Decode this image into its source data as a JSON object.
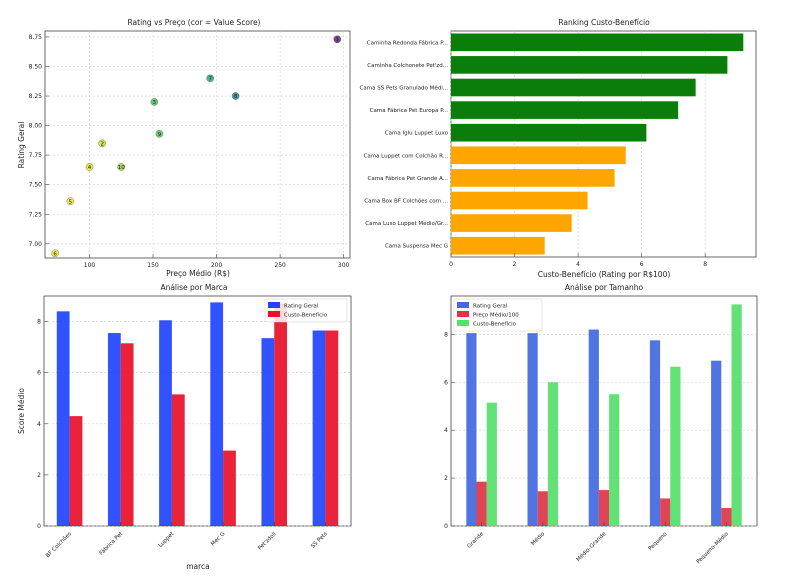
{
  "chart_data": [
    {
      "id": "scatter",
      "type": "scatter",
      "title": "Rating vs Preço (cor = Value Score)",
      "xlabel": "Preço Médio (R$)",
      "ylabel": "Rating Geral",
      "xlim": [
        65,
        305
      ],
      "ylim": [
        6.88,
        8.8
      ],
      "xticks": [
        100,
        150,
        200,
        250,
        300
      ],
      "yticks": [
        7.0,
        7.25,
        7.5,
        7.75,
        8.0,
        8.25,
        8.5,
        8.75
      ],
      "points": [
        {
          "label": "1",
          "x": 295,
          "y": 8.73,
          "color": "#6a2f7f"
        },
        {
          "label": "2",
          "x": 110,
          "y": 7.85,
          "color": "#c8df3c"
        },
        {
          "label": "3",
          "x": 151,
          "y": 8.2,
          "color": "#56c66a"
        },
        {
          "label": "4",
          "x": 100,
          "y": 7.65,
          "color": "#dce63a"
        },
        {
          "label": "5",
          "x": 85,
          "y": 7.36,
          "color": "#eae63a"
        },
        {
          "label": "6",
          "x": 73,
          "y": 6.92,
          "color": "#f2e63a"
        },
        {
          "label": "7",
          "x": 195,
          "y": 8.4,
          "color": "#3aaa8e"
        },
        {
          "label": "8",
          "x": 215,
          "y": 8.25,
          "color": "#3a8e9a"
        },
        {
          "label": "9",
          "x": 155,
          "y": 7.93,
          "color": "#5dca6a"
        },
        {
          "label": "10",
          "x": 125,
          "y": 7.65,
          "color": "#9ed84a"
        }
      ]
    },
    {
      "id": "ranking",
      "type": "bar",
      "orientation": "horizontal",
      "title": "Ranking Custo-Benefício",
      "xlabel": "Custo-Benefício (Rating por R$100)",
      "xlim": [
        0,
        9.6
      ],
      "xticks": [
        0,
        2,
        4,
        6,
        8
      ],
      "categories": [
        "Caminha Redonda Fábrica P...",
        "Caminha Colchonete Pet'zd...",
        "Cama SS Pets Granulado Médi...",
        "Cama Fábrica Pet Europa P...",
        "Cama Iglu Luppet Luxo",
        "Cama Luppet com Colchão R...",
        "Cama Fábrica Pet Grande A...",
        "Cama Box BF Colchões com ...",
        "Cama Luxo Luppet Médio/Gr...",
        "Cama Suspensa Mec G"
      ],
      "values": [
        9.2,
        8.7,
        7.7,
        7.15,
        6.15,
        5.5,
        5.15,
        4.3,
        3.8,
        2.95
      ],
      "colors": [
        "#0a7d0a",
        "#0a7d0a",
        "#0a7d0a",
        "#0a7d0a",
        "#0a7d0a",
        "#ffa500",
        "#ffa500",
        "#ffa500",
        "#ffa500",
        "#ffa500"
      ]
    },
    {
      "id": "marca",
      "type": "bar",
      "title": "Análise por Marca",
      "xlabel": "marca",
      "ylabel": "Score Médio",
      "ylim": [
        0,
        9.0
      ],
      "yticks": [
        0,
        2,
        4,
        6,
        8
      ],
      "categories": [
        "BF Colchões",
        "Fábrica Pet",
        "Luppet",
        "Mec G",
        "Pet'zdoll",
        "SS Pets"
      ],
      "series": [
        {
          "name": "Rating Geral",
          "color": "#1f44ff",
          "values": [
            8.4,
            7.55,
            8.05,
            8.75,
            7.35,
            7.65
          ]
        },
        {
          "name": "Custo-Benefício",
          "color": "#e8102a",
          "values": [
            4.3,
            7.15,
            5.15,
            2.95,
            8.7,
            7.65
          ]
        }
      ],
      "legend": "top-right"
    },
    {
      "id": "tamanho",
      "type": "bar",
      "title": "Análise por Tamanho",
      "ylim": [
        0,
        9.6
      ],
      "yticks": [
        0,
        2,
        4,
        6,
        8
      ],
      "categories": [
        "Grande",
        "Médio",
        "Médio-Grande",
        "Pequeno",
        "Pequeno-Médio"
      ],
      "series": [
        {
          "name": "Rating Geral",
          "color": "#4169e1",
          "values": [
            8.05,
            8.05,
            8.2,
            7.75,
            6.9
          ]
        },
        {
          "name": "Preço Médio/100",
          "color": "#dc3545",
          "values": [
            1.85,
            1.45,
            1.5,
            1.15,
            0.75
          ]
        },
        {
          "name": "Custo-Benefício",
          "color": "#55e06a",
          "values": [
            5.15,
            6.0,
            5.5,
            6.65,
            9.25
          ]
        }
      ],
      "legend": "top-left"
    }
  ]
}
